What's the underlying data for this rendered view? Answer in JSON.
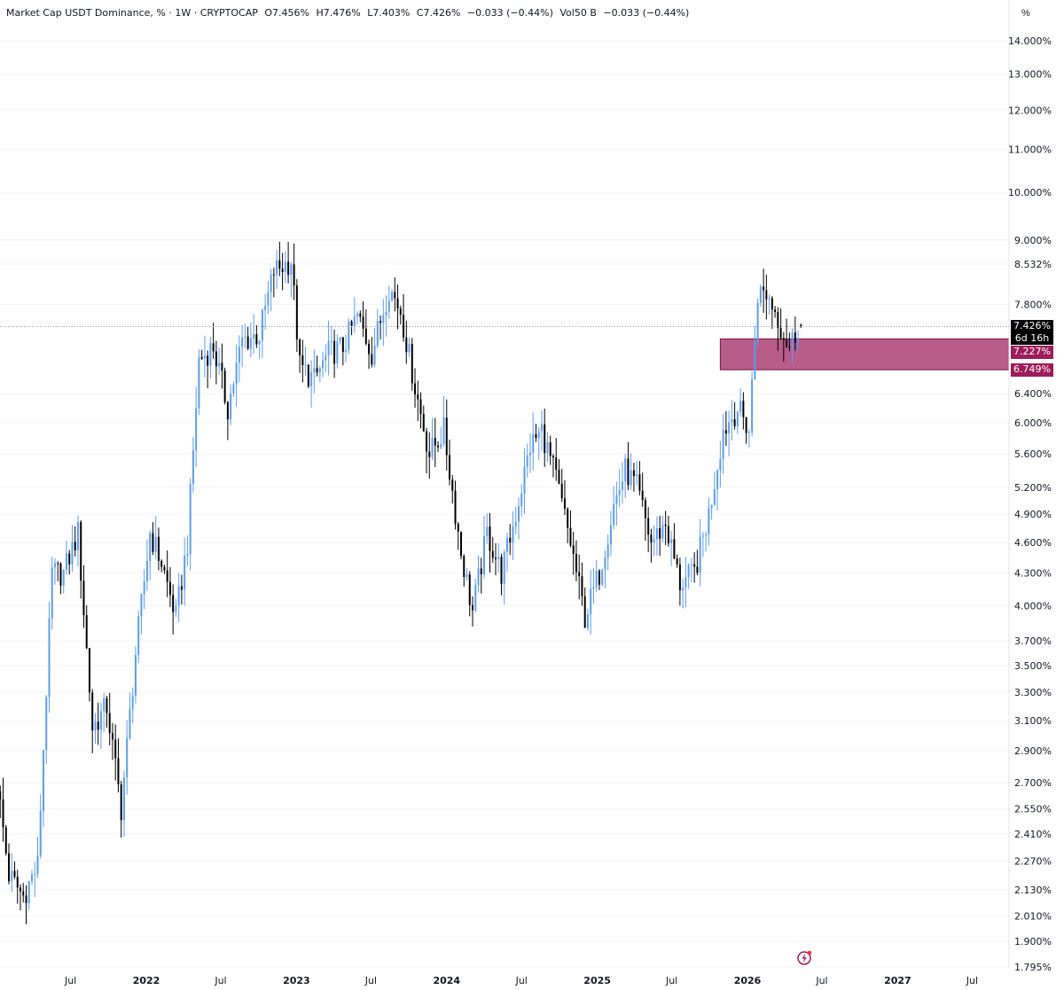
{
  "legend": {
    "symbol": "Market Cap USDT Dominance, % · 1W · CRYPTOCAP",
    "open": "O7.456%",
    "high": "H7.476%",
    "low": "L7.403%",
    "close": "C7.426%",
    "change": "−0.033 (−0.44%)",
    "volume": "Vol50 B",
    "vol_change": "−0.033 (−0.44%)"
  },
  "unit_button": "%",
  "current_price": "7.426%",
  "countdown": "6d 16h",
  "zone": {
    "top": 7.227,
    "bottom": 6.749,
    "top_label": "7.227%",
    "bottom_label": "6.749%",
    "color": "#9c1d5c"
  },
  "colors": {
    "up": "#5b9cf6",
    "down": "#000000",
    "zone_fill": "#9c1d5c",
    "alert": "#9c1d5c"
  },
  "chart_data": {
    "type": "candlestick",
    "title": "Market Cap USDT Dominance, % · 1W · CRYPTOCAP",
    "scale": "log",
    "y_ticks": [
      "14.000%",
      "13.000%",
      "12.000%",
      "11.000%",
      "10.000%",
      "9.000%",
      "8.532%",
      "7.800%",
      "6.400%",
      "6.000%",
      "5.600%",
      "5.200%",
      "4.900%",
      "4.600%",
      "4.300%",
      "4.000%",
      "3.700%",
      "3.500%",
      "3.300%",
      "3.100%",
      "2.900%",
      "2.700%",
      "2.550%",
      "2.410%",
      "2.270%",
      "2.130%",
      "2.010%",
      "1.900%",
      "1.795%"
    ],
    "y_tick_values": [
      14.0,
      13.0,
      12.0,
      11.0,
      10.0,
      9.0,
      8.532,
      7.8,
      6.4,
      6.0,
      5.6,
      5.2,
      4.9,
      4.6,
      4.3,
      4.0,
      3.7,
      3.5,
      3.3,
      3.1,
      2.9,
      2.7,
      2.55,
      2.41,
      2.27,
      2.13,
      2.01,
      1.9,
      1.795
    ],
    "x_ticks": [
      {
        "label": "Jul",
        "date": "2021-07-01",
        "year": false
      },
      {
        "label": "2022",
        "date": "2022-01-01",
        "year": true
      },
      {
        "label": "Jul",
        "date": "2022-07-01",
        "year": false
      },
      {
        "label": "2023",
        "date": "2023-01-01",
        "year": true
      },
      {
        "label": "Jul",
        "date": "2023-07-01",
        "year": false
      },
      {
        "label": "2024",
        "date": "2024-01-01",
        "year": true
      },
      {
        "label": "Jul",
        "date": "2024-07-01",
        "year": false
      },
      {
        "label": "2025",
        "date": "2025-01-01",
        "year": true
      },
      {
        "label": "Jul",
        "date": "2025-07-01",
        "year": false
      },
      {
        "label": "2026",
        "date": "2026-01-01",
        "year": true
      },
      {
        "label": "Jul",
        "date": "2026-07-01",
        "year": false
      },
      {
        "label": "2027",
        "date": "2027-01-01",
        "year": true
      },
      {
        "label": "Jul",
        "date": "2027-07-01",
        "year": false
      }
    ],
    "weekly_close_path": [
      {
        "date": "2021-01-04",
        "close": 2.7
      },
      {
        "date": "2021-02-01",
        "close": 2.2
      },
      {
        "date": "2021-03-08",
        "close": 2.1
      },
      {
        "date": "2021-04-12",
        "close": 2.25
      },
      {
        "date": "2021-05-17",
        "close": 4.3
      },
      {
        "date": "2021-06-14",
        "close": 4.3
      },
      {
        "date": "2021-07-19",
        "close": 4.7
      },
      {
        "date": "2021-08-23",
        "close": 3.05
      },
      {
        "date": "2021-09-27",
        "close": 3.2
      },
      {
        "date": "2021-11-01",
        "close": 2.55
      },
      {
        "date": "2021-12-06",
        "close": 3.6
      },
      {
        "date": "2022-01-10",
        "close": 4.7
      },
      {
        "date": "2022-02-07",
        "close": 4.4
      },
      {
        "date": "2022-03-14",
        "close": 3.9
      },
      {
        "date": "2022-04-11",
        "close": 4.6
      },
      {
        "date": "2022-05-09",
        "close": 6.9
      },
      {
        "date": "2022-06-13",
        "close": 7.1
      },
      {
        "date": "2022-07-18",
        "close": 6.2
      },
      {
        "date": "2022-08-22",
        "close": 7.2
      },
      {
        "date": "2022-10-03",
        "close": 7.3
      },
      {
        "date": "2022-11-07",
        "close": 8.4
      },
      {
        "date": "2022-12-19",
        "close": 8.6
      },
      {
        "date": "2023-01-09",
        "close": 6.8
      },
      {
        "date": "2023-02-13",
        "close": 6.6
      },
      {
        "date": "2023-03-20",
        "close": 7.0
      },
      {
        "date": "2023-04-24",
        "close": 7.1
      },
      {
        "date": "2023-05-29",
        "close": 7.6
      },
      {
        "date": "2023-07-03",
        "close": 7.0
      },
      {
        "date": "2023-08-14",
        "close": 8.1
      },
      {
        "date": "2023-09-11",
        "close": 7.7
      },
      {
        "date": "2023-10-16",
        "close": 6.5
      },
      {
        "date": "2023-11-20",
        "close": 5.6
      },
      {
        "date": "2023-12-25",
        "close": 5.9
      },
      {
        "date": "2024-02-05",
        "close": 4.5
      },
      {
        "date": "2024-03-04",
        "close": 3.95
      },
      {
        "date": "2024-04-08",
        "close": 4.7
      },
      {
        "date": "2024-05-13",
        "close": 4.3
      },
      {
        "date": "2024-06-17",
        "close": 4.9
      },
      {
        "date": "2024-07-22",
        "close": 5.7
      },
      {
        "date": "2024-08-19",
        "close": 5.9
      },
      {
        "date": "2024-09-23",
        "close": 5.3
      },
      {
        "date": "2024-10-28",
        "close": 4.6
      },
      {
        "date": "2024-12-02",
        "close": 3.9
      },
      {
        "date": "2025-01-06",
        "close": 4.3
      },
      {
        "date": "2025-02-10",
        "close": 5.0
      },
      {
        "date": "2025-03-10",
        "close": 5.4
      },
      {
        "date": "2025-04-07",
        "close": 5.2
      },
      {
        "date": "2025-05-12",
        "close": 4.6
      },
      {
        "date": "2025-06-16",
        "close": 4.8
      },
      {
        "date": "2025-07-21",
        "close": 4.2
      },
      {
        "date": "2025-08-25",
        "close": 4.3
      },
      {
        "date": "2025-09-29",
        "close": 4.9
      },
      {
        "date": "2025-11-03",
        "close": 5.9
      },
      {
        "date": "2025-12-08",
        "close": 6.2
      },
      {
        "date": "2026-01-05",
        "close": 5.9
      },
      {
        "date": "2026-01-26",
        "close": 8.0
      },
      {
        "date": "2026-02-16",
        "close": 8.0
      },
      {
        "date": "2026-03-09",
        "close": 7.7
      },
      {
        "date": "2026-03-30",
        "close": 7.3
      },
      {
        "date": "2026-04-13",
        "close": 7.1
      },
      {
        "date": "2026-05-04",
        "close": 7.426
      }
    ],
    "last_candle": {
      "open": 7.456,
      "high": 7.476,
      "low": 7.403,
      "close": 7.426
    }
  }
}
